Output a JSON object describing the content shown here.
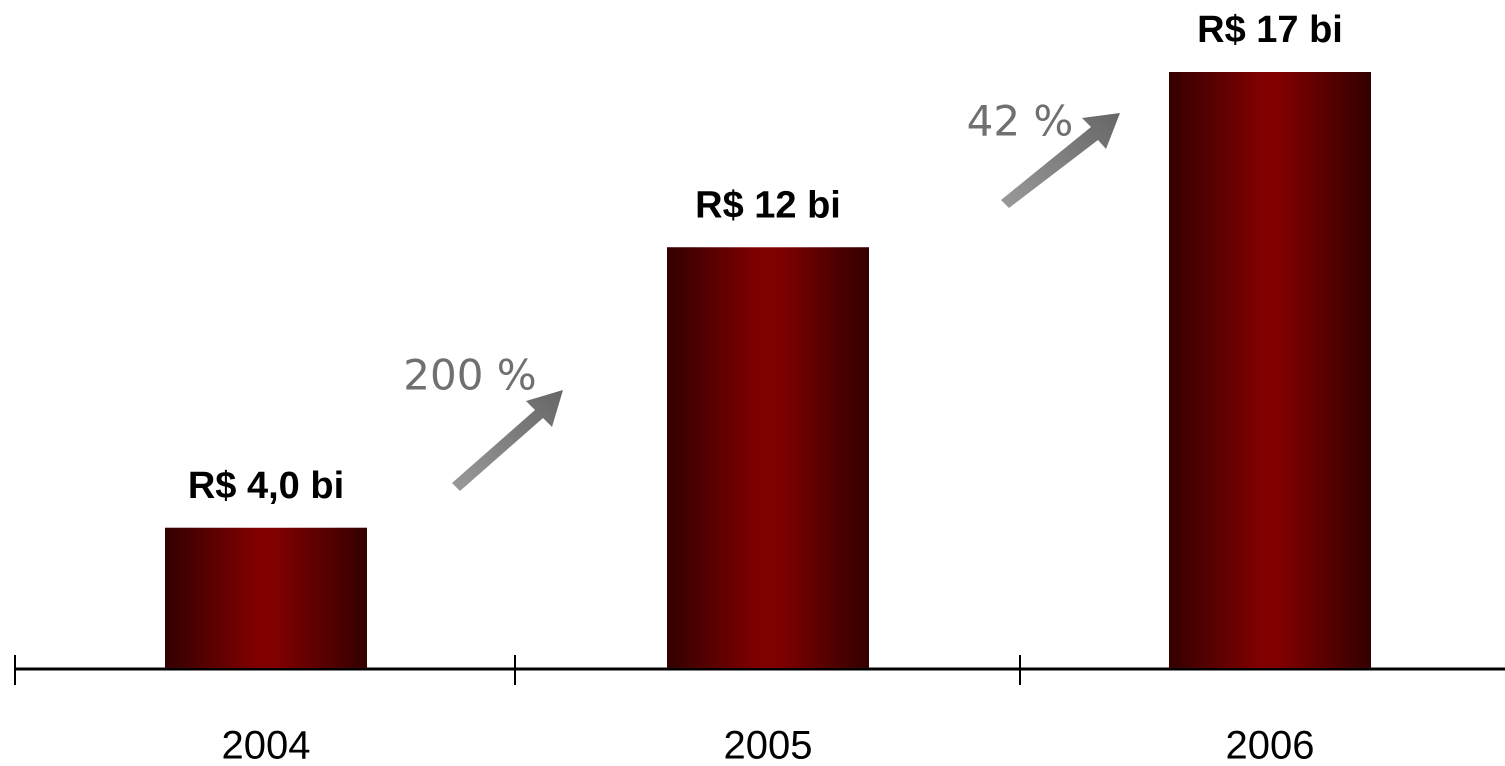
{
  "chart_data": {
    "type": "bar",
    "categories": [
      "2004",
      "2005",
      "2006"
    ],
    "values": [
      4,
      12,
      17
    ],
    "value_labels": [
      "R$ 4,0 bi",
      "R$ 12 bi",
      "R$ 17 bi"
    ],
    "color": "#800000",
    "annotations": [
      {
        "text": "200 %"
      },
      {
        "text": "42 %"
      }
    ]
  }
}
